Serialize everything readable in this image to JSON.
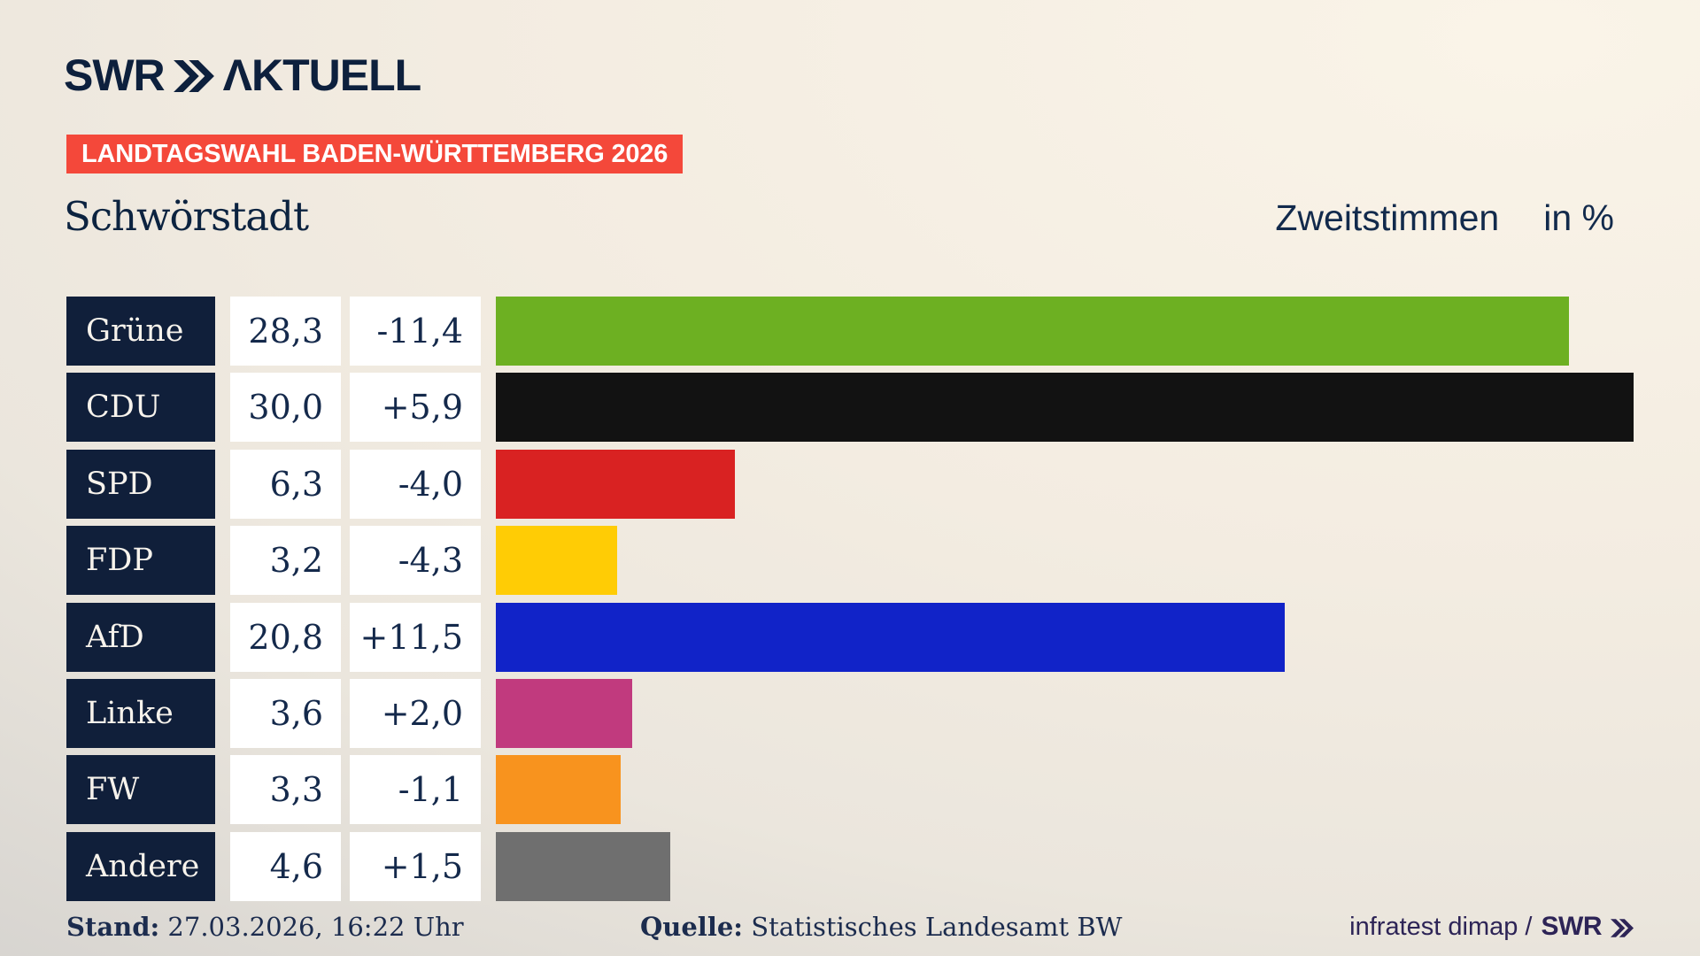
{
  "header": {
    "logo_swr": "SWR",
    "logo_aktuell": "ΛKTUELL",
    "banner": "LANDTAGSWAHL BADEN-WÜRTTEMBERG 2026"
  },
  "title": {
    "location": "Schwörstadt",
    "measure": "Zweitstimmen",
    "unit_label": "in %"
  },
  "chart_data": {
    "type": "bar",
    "orientation": "horizontal",
    "title": "Schwörstadt",
    "subtitle": "Zweitstimmen in %",
    "unit": "percent",
    "xlim": [
      0,
      31.75
    ],
    "grid": false,
    "legend": false,
    "categories": [
      "Grüne",
      "CDU",
      "SPD",
      "FDP",
      "AfD",
      "Linke",
      "FW",
      "Andere"
    ],
    "values": [
      28.3,
      30.0,
      6.3,
      3.2,
      20.8,
      3.6,
      3.3,
      4.6
    ],
    "changes": [
      -11.4,
      5.9,
      -4.0,
      -4.3,
      11.5,
      2.0,
      -1.1,
      1.5
    ],
    "rows": [
      {
        "party": "Grüne",
        "value": 28.3,
        "value_label": "28,3",
        "change_label": "-11,4",
        "color": "#6db022"
      },
      {
        "party": "CDU",
        "value": 30.0,
        "value_label": "30,0",
        "change_label": "+5,9",
        "color": "#121212"
      },
      {
        "party": "SPD",
        "value": 6.3,
        "value_label": "6,3",
        "change_label": "-4,0",
        "color": "#d92222"
      },
      {
        "party": "FDP",
        "value": 3.2,
        "value_label": "3,2",
        "change_label": "-4,3",
        "color": "#ffcc05"
      },
      {
        "party": "AfD",
        "value": 20.8,
        "value_label": "20,8",
        "change_label": "+11,5",
        "color": "#1123c8"
      },
      {
        "party": "Linke",
        "value": 3.6,
        "value_label": "3,6",
        "change_label": "+2,0",
        "color": "#c13a7e"
      },
      {
        "party": "FW",
        "value": 3.3,
        "value_label": "3,3",
        "change_label": "-1,1",
        "color": "#f8931e"
      },
      {
        "party": "Andere",
        "value": 4.6,
        "value_label": "4,6",
        "change_label": "+1,5",
        "color": "#6f6f6f"
      }
    ]
  },
  "footer": {
    "stand_label": "Stand:",
    "stand_value": "27.03.2026, 16:22 Uhr",
    "quelle_label": "Quelle:",
    "quelle_value": "Statistisches Landesamt BW",
    "credit_text": "infratest dimap /",
    "credit_brand": "SWR"
  },
  "colors": {
    "navy": "#101f3a",
    "banner_red": "#f4483a",
    "text_navy": "#14294b",
    "credit_purple": "#2d2456",
    "background_light": "#f7f0e4",
    "background_dark": "#d2d0cd"
  }
}
